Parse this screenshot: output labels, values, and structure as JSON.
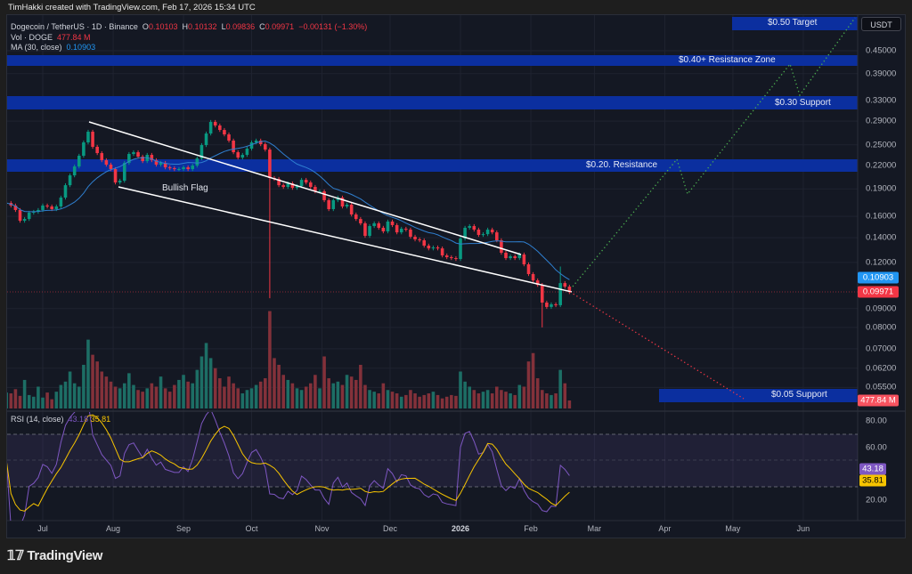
{
  "header": {
    "attribution": "TimHakki created with TradingView.com, Feb 17, 2026 15:34 UTC"
  },
  "legend": {
    "symbol": "Dogecoin / TetherUS · 1D · Binance",
    "o_label": "O",
    "open": "0.10103",
    "h_label": "H",
    "high": "0.10132",
    "l_label": "L",
    "low": "0.09836",
    "c_label": "C",
    "close": "0.09971",
    "change": "−0.00131 (−1.30%)",
    "vol_label": "Vol · DOGE",
    "vol_value": "477.84 M",
    "ma_label": "MA (30, close)",
    "ma_value": "0.10903"
  },
  "price_axis": {
    "currency": "USDT",
    "ticks": [
      "0.45000",
      "0.39000",
      "0.33000",
      "0.29000",
      "0.25000",
      "0.22000",
      "0.19000",
      "0.16000",
      "0.14000",
      "0.12000",
      "0.09000",
      "0.08000",
      "0.07000",
      "0.06200",
      "0.05500"
    ],
    "ma_badge": "0.10903",
    "last_price_badge": "0.09971",
    "volume_badge": "477.84 M"
  },
  "rsi": {
    "label": "RSI (14, close)",
    "value": "43.18",
    "ma_value": "35.81",
    "ticks": [
      "80.00",
      "60.00",
      "20.00"
    ],
    "band_levels": [
      70,
      50,
      30
    ]
  },
  "time_axis": {
    "ticks": [
      "Jul",
      "Aug",
      "Sep",
      "Oct",
      "Nov",
      "Dec",
      "2026",
      "Feb",
      "Mar",
      "Apr",
      "May",
      "Jun"
    ]
  },
  "annotations": {
    "flag_label": "Bullish Flag",
    "zones": [
      {
        "label": "$0.50 Target"
      },
      {
        "label": "$0.40+ Resistance Zone"
      },
      {
        "label": "$0.30 Support"
      },
      {
        "label": "$0.20. Resistance"
      },
      {
        "label": "$0.05 Support"
      }
    ]
  },
  "colors": {
    "up": "#089981",
    "down": "#f23645",
    "ma": "#2196f3",
    "rsi": "#7e57c2",
    "rsi_ma": "#f7c400",
    "zone": "#0b2f9f",
    "bull_projection": "#4caf50",
    "bear_projection": "#f23645",
    "flag_lines": "#ffffff"
  },
  "footer": {
    "logo_text": "TradingView"
  },
  "chart_data": {
    "type": "candlestick",
    "title": "Dogecoin / TetherUS · 1D · Binance",
    "y_scale": "log",
    "ylim": [
      0.05,
      0.5
    ],
    "xlim": [
      "2025-06-15",
      "2026-06-20"
    ],
    "start_date": "2025-06-15",
    "interval_days": 2,
    "close": [
      0.174,
      0.1712,
      0.1665,
      0.1557,
      0.1574,
      0.1637,
      0.1646,
      0.1665,
      0.1712,
      0.1702,
      0.1674,
      0.1702,
      0.1799,
      0.1944,
      0.2067,
      0.2185,
      0.2336,
      0.2539,
      0.2714,
      0.247,
      0.2375,
      0.2272,
      0.221,
      0.2149,
      0.1977,
      0.1999,
      0.2234,
      0.2362,
      0.2388,
      0.2323,
      0.2259,
      0.2349,
      0.2272,
      0.221,
      0.2234,
      0.2173,
      0.2161,
      0.2149,
      0.2149,
      0.2173,
      0.2149,
      0.2197,
      0.2297,
      0.2497,
      0.2684,
      0.2885,
      0.2822,
      0.2744,
      0.2669,
      0.2568,
      0.2388,
      0.231,
      0.2349,
      0.2442,
      0.2539,
      0.2568,
      0.2511,
      0.2428,
      0.2033,
      0.2022,
      0.1944,
      0.1923,
      0.1966,
      0.1912,
      0.1933,
      0.201,
      0.1977,
      0.1923,
      0.187,
      0.187,
      0.177,
      0.1674,
      0.177,
      0.1799,
      0.1702,
      0.1721,
      0.1619,
      0.1574,
      0.1532,
      0.1417,
      0.1506,
      0.1532,
      0.149,
      0.1457,
      0.1549,
      0.1515,
      0.1448,
      0.1481,
      0.1473,
      0.1409,
      0.1386,
      0.1378,
      0.1333,
      0.131,
      0.1318,
      0.131,
      0.1254,
      0.124,
      0.1233,
      0.1226,
      0.1393,
      0.149,
      0.1506,
      0.1473,
      0.1425,
      0.1432,
      0.1473,
      0.1448,
      0.1378,
      0.1275,
      0.1233,
      0.1247,
      0.1233,
      0.1261,
      0.1186,
      0.1116,
      0.1073,
      0.1043,
      0.0934,
      0.0909,
      0.0924,
      0.0919,
      0.1055,
      0.1032,
      0.09971
    ],
    "volume_millions": [
      950,
      900,
      1150,
      750,
      1700,
      800,
      700,
      1300,
      650,
      950,
      550,
      1000,
      1400,
      1600,
      2200,
      1500,
      1300,
      2600,
      4100,
      3200,
      2800,
      2200,
      1900,
      1600,
      1300,
      1200,
      1500,
      2100,
      1400,
      1100,
      1000,
      1200,
      1500,
      1300,
      1900,
      1200,
      1000,
      1400,
      1700,
      2000,
      1600,
      1500,
      2300,
      3100,
      3900,
      3000,
      2400,
      1800,
      1300,
      1900,
      1500,
      1200,
      900,
      1100,
      1200,
      1400,
      1600,
      1800,
      5800,
      3000,
      2600,
      2000,
      1700,
      1500,
      1200,
      1100,
      1300,
      1500,
      2000,
      1200,
      3100,
      1800,
      1500,
      1600,
      1400,
      2000,
      1900,
      1700,
      2600,
      1400,
      1100,
      1000,
      900,
      1500,
      1100,
      1000,
      900,
      700,
      800,
      1100,
      900,
      700,
      800,
      900,
      1000,
      800,
      600,
      700,
      800,
      750,
      2200,
      1600,
      1300,
      1100,
      900,
      1000,
      1100,
      900,
      1300,
      1100,
      1000,
      900,
      800,
      1400,
      1300,
      2800,
      3300,
      1800,
      1100,
      900,
      800,
      900,
      2300,
      1500,
      477.84
    ],
    "wick_extremes": [
      {
        "date": "2025-10-09",
        "low": 0.096
      },
      {
        "date": "2026-02-06",
        "low": 0.08
      },
      {
        "date": "2026-02-14",
        "high": 0.117
      }
    ],
    "ma_period_days": 30,
    "rsi_period_days": 14
  }
}
